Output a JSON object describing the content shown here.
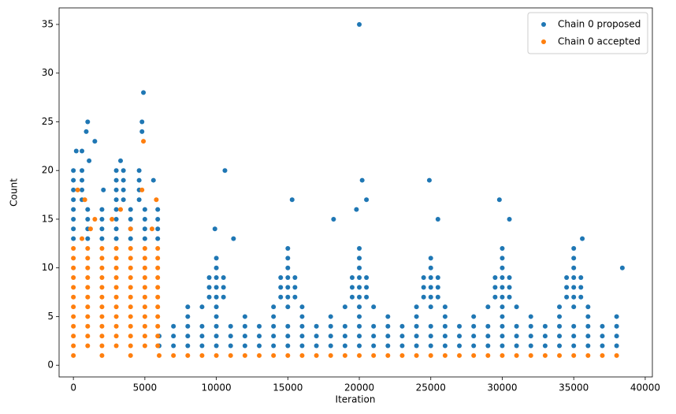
{
  "chart_data": {
    "type": "scatter",
    "xlabel": "Iteration",
    "ylabel": "Count",
    "xlim": [
      -1000,
      40500
    ],
    "ylim": [
      -1.2,
      36.7
    ],
    "xticks": [
      0,
      5000,
      10000,
      15000,
      20000,
      25000,
      30000,
      35000,
      40000
    ],
    "yticks": [
      0,
      5,
      10,
      15,
      20,
      25,
      30,
      35
    ],
    "legend": "upper right",
    "series": [
      {
        "name": "Chain 0 proposed",
        "color": "#1f77b4",
        "x": [
          0,
          1000,
          2000,
          3000,
          4000,
          5000,
          5900,
          0,
          1000,
          2000,
          3000,
          4000,
          5000,
          5900,
          0,
          1000,
          2000,
          3000,
          4000,
          5000,
          5900,
          0,
          1000,
          2000,
          3000,
          4000,
          5000,
          5900,
          0,
          600,
          3000,
          3500,
          4600,
          0,
          600,
          3000,
          3500,
          4600,
          0,
          600,
          3000,
          3500,
          4600,
          0,
          600,
          3000,
          3500,
          4600,
          200,
          600,
          1000,
          900,
          1500,
          1100,
          4800,
          4900,
          4800,
          3300,
          5600,
          2100,
          6000,
          7000,
          8000,
          9000,
          10000,
          11000,
          12000,
          13000,
          14000,
          15000,
          16000,
          17000,
          18000,
          19000,
          20000,
          21000,
          22000,
          23000,
          24000,
          25000,
          26000,
          27000,
          28000,
          29000,
          30000,
          31000,
          32000,
          33000,
          34000,
          35000,
          36000,
          37000,
          38000,
          6000,
          7000,
          8000,
          9000,
          10000,
          11000,
          12000,
          13000,
          14000,
          15000,
          16000,
          17000,
          18000,
          19000,
          20000,
          21000,
          22000,
          23000,
          24000,
          25000,
          26000,
          27000,
          28000,
          29000,
          30000,
          31000,
          32000,
          33000,
          34000,
          35000,
          36000,
          37000,
          38000,
          7000,
          8000,
          9000,
          10000,
          11000,
          12000,
          13000,
          14000,
          15000,
          16000,
          17000,
          18000,
          19000,
          20000,
          21000,
          22000,
          23000,
          24000,
          25000,
          26000,
          27000,
          28000,
          29000,
          30000,
          31000,
          32000,
          33000,
          34000,
          35000,
          36000,
          37000,
          38000,
          8000,
          10000,
          12000,
          14000,
          16000,
          18000,
          20000,
          22000,
          24000,
          26000,
          28000,
          30000,
          32000,
          34000,
          36000,
          38000,
          8000,
          9000,
          10000,
          14000,
          15000,
          16000,
          19000,
          20000,
          21000,
          24000,
          25000,
          26000,
          29000,
          30000,
          31000,
          34000,
          35000,
          36000,
          9500,
          10000,
          10500,
          9500,
          10000,
          10500,
          9500,
          10000,
          10500,
          14500,
          15000,
          15500,
          14500,
          15000,
          15500,
          14500,
          15000,
          15500,
          19500,
          20000,
          20500,
          19500,
          20000,
          20500,
          19500,
          20000,
          20500,
          24500,
          25000,
          25500,
          24500,
          25000,
          25500,
          24500,
          25000,
          25500,
          29500,
          30000,
          30500,
          29500,
          30000,
          30500,
          29500,
          30000,
          30500,
          34500,
          35000,
          35500,
          34500,
          35000,
          35500,
          34500,
          35000,
          35500,
          10000,
          15000,
          20000,
          25000,
          30000,
          35000,
          10000,
          15000,
          20000,
          25000,
          30000,
          35000,
          15000,
          20000,
          30000,
          35000,
          20000,
          10600,
          20200,
          24900,
          15300,
          29800,
          20500,
          18200,
          30500,
          9900,
          11200,
          35600,
          25500,
          19800,
          38400
        ],
        "values": [
          13,
          13,
          13,
          13,
          13,
          13,
          13,
          14,
          14,
          14,
          14,
          14,
          14,
          14,
          15,
          15,
          15,
          15,
          15,
          15,
          15,
          16,
          16,
          16,
          16,
          16,
          16,
          16,
          17,
          17,
          17,
          17,
          17,
          18,
          18,
          18,
          18,
          18,
          19,
          19,
          19,
          19,
          19,
          20,
          20,
          20,
          20,
          20,
          22,
          22,
          25,
          24,
          23,
          21,
          25,
          28,
          24,
          21,
          19,
          18,
          2,
          2,
          2,
          2,
          2,
          2,
          2,
          2,
          2,
          2,
          2,
          2,
          2,
          2,
          2,
          2,
          2,
          2,
          2,
          2,
          2,
          2,
          2,
          2,
          2,
          2,
          2,
          2,
          2,
          2,
          2,
          2,
          2,
          3,
          3,
          3,
          3,
          3,
          3,
          3,
          3,
          3,
          3,
          3,
          3,
          3,
          3,
          3,
          3,
          3,
          3,
          3,
          3,
          3,
          3,
          3,
          3,
          3,
          3,
          3,
          3,
          3,
          3,
          3,
          3,
          3,
          4,
          4,
          4,
          4,
          4,
          4,
          4,
          4,
          4,
          4,
          4,
          4,
          4,
          4,
          4,
          4,
          4,
          4,
          4,
          4,
          4,
          4,
          4,
          4,
          4,
          4,
          4,
          4,
          4,
          4,
          4,
          4,
          5,
          5,
          5,
          5,
          5,
          5,
          5,
          5,
          5,
          5,
          5,
          5,
          5,
          5,
          5,
          5,
          6,
          6,
          6,
          6,
          6,
          6,
          6,
          6,
          6,
          6,
          6,
          6,
          6,
          6,
          6,
          6,
          6,
          6,
          7,
          7,
          7,
          8,
          8,
          8,
          9,
          9,
          9,
          7,
          7,
          7,
          8,
          8,
          8,
          9,
          9,
          9,
          7,
          7,
          7,
          8,
          8,
          8,
          9,
          9,
          9,
          7,
          7,
          7,
          8,
          8,
          8,
          9,
          9,
          9,
          7,
          7,
          7,
          8,
          8,
          8,
          9,
          9,
          9,
          7,
          7,
          7,
          8,
          8,
          8,
          9,
          9,
          9,
          10,
          10,
          10,
          10,
          10,
          10,
          11,
          11,
          11,
          11,
          11,
          11,
          12,
          12,
          12,
          12,
          35,
          20,
          19,
          19,
          17,
          17,
          17,
          15,
          15,
          14,
          13,
          13,
          15,
          16,
          10
        ]
      },
      {
        "name": "Chain 0 accepted",
        "color": "#ff7f0e",
        "x": [
          0,
          1000,
          2000,
          3000,
          4000,
          5000,
          5900,
          0,
          1000,
          2000,
          3000,
          4000,
          5000,
          5900,
          0,
          1000,
          2000,
          3000,
          4000,
          5000,
          5900,
          0,
          1000,
          2000,
          3000,
          4000,
          5000,
          5900,
          0,
          1000,
          2000,
          3000,
          4000,
          5000,
          5900,
          0,
          1000,
          2000,
          3000,
          4000,
          5000,
          5900,
          0,
          1000,
          2000,
          3000,
          4000,
          5000,
          5900,
          0,
          1000,
          2000,
          3000,
          4000,
          5000,
          5900,
          0,
          1000,
          2000,
          3000,
          4000,
          5000,
          5900,
          0,
          1000,
          2000,
          3000,
          4000,
          5000,
          5900,
          0,
          1000,
          2000,
          3000,
          4000,
          5000,
          5900,
          0,
          2000,
          4000,
          6000,
          7000,
          8000,
          9000,
          10000,
          11000,
          12000,
          13000,
          14000,
          15000,
          16000,
          17000,
          18000,
          19000,
          20000,
          21000,
          22000,
          23000,
          24000,
          25000,
          26000,
          27000,
          28000,
          29000,
          30000,
          31000,
          32000,
          33000,
          34000,
          35000,
          36000,
          37000,
          38000,
          300,
          800,
          1500,
          4800,
          4900,
          5800,
          1200,
          3300,
          4000,
          600,
          5500,
          2700
        ],
        "values": [
          2,
          2,
          2,
          2,
          2,
          2,
          2,
          3,
          3,
          3,
          3,
          3,
          3,
          3,
          4,
          4,
          4,
          4,
          4,
          4,
          4,
          5,
          5,
          5,
          5,
          5,
          5,
          5,
          6,
          6,
          6,
          6,
          6,
          6,
          6,
          7,
          7,
          7,
          7,
          7,
          7,
          7,
          8,
          8,
          8,
          8,
          8,
          8,
          8,
          9,
          9,
          9,
          9,
          9,
          9,
          9,
          10,
          10,
          10,
          10,
          10,
          10,
          10,
          11,
          11,
          11,
          11,
          11,
          11,
          11,
          12,
          12,
          12,
          12,
          12,
          12,
          12,
          1,
          1,
          1,
          1,
          1,
          1,
          1,
          1,
          1,
          1,
          1,
          1,
          1,
          1,
          1,
          1,
          1,
          1,
          1,
          1,
          1,
          1,
          1,
          1,
          1,
          1,
          1,
          1,
          1,
          1,
          1,
          1,
          1,
          1,
          1,
          1,
          18,
          17,
          15,
          18,
          23,
          17,
          14,
          16,
          14,
          13,
          14,
          15
        ]
      }
    ]
  }
}
